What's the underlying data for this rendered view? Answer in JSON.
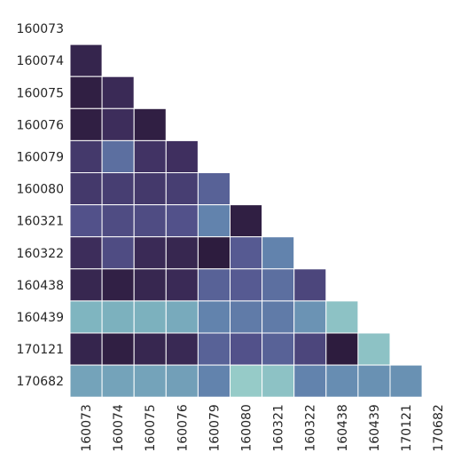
{
  "chart_data": {
    "type": "heatmap",
    "mask": "upper-triangle",
    "row_labels": [
      "160073",
      "160074",
      "160075",
      "160076",
      "160079",
      "160080",
      "160321",
      "160322",
      "160438",
      "160439",
      "170121",
      "170682"
    ],
    "col_labels": [
      "160073",
      "160074",
      "160075",
      "160076",
      "160079",
      "160080",
      "160321",
      "160322",
      "160438",
      "160439",
      "170121",
      "170682"
    ],
    "values": [
      [],
      [
        0.1
      ],
      [
        0.05,
        0.15
      ],
      [
        0.05,
        0.18,
        0.05
      ],
      [
        0.25,
        0.5,
        0.22,
        0.2
      ],
      [
        0.25,
        0.28,
        0.25,
        0.28,
        0.45
      ],
      [
        0.38,
        0.35,
        0.35,
        0.38,
        0.58,
        0.05
      ],
      [
        0.18,
        0.35,
        0.15,
        0.12,
        0.02,
        0.42,
        0.58
      ],
      [
        0.12,
        0.06,
        0.12,
        0.15,
        0.45,
        0.42,
        0.5,
        0.32
      ],
      [
        0.8,
        0.78,
        0.78,
        0.75,
        0.58,
        0.55,
        0.55,
        0.65,
        0.86
      ],
      [
        0.1,
        0.05,
        0.12,
        0.14,
        0.45,
        0.38,
        0.45,
        0.32,
        0.02,
        0.86
      ],
      [
        0.72,
        0.72,
        0.72,
        0.7,
        0.58,
        0.9,
        0.86,
        0.58,
        0.62,
        0.64,
        0.64
      ]
    ],
    "colormap_stops": [
      "#2b1a3a",
      "#3f2f5f",
      "#54558f",
      "#6488b0",
      "#7fb5c0",
      "#ace0cf"
    ],
    "grid_line_color": "#ffffff",
    "legend": "none"
  }
}
